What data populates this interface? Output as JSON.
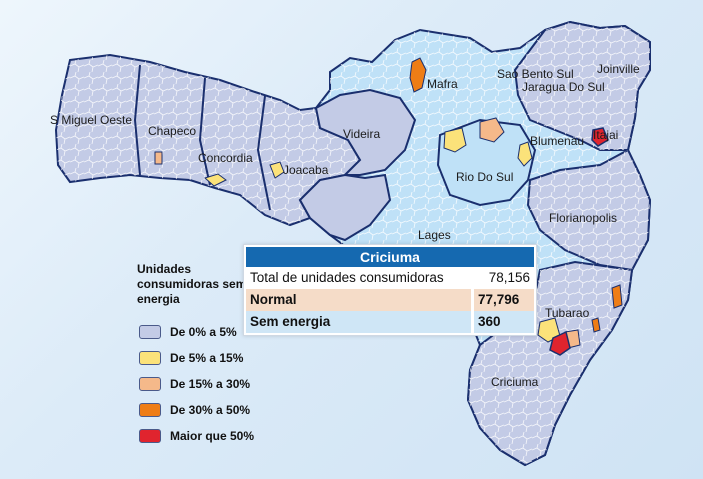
{
  "cities": [
    {
      "name": "S Miguel Oeste"
    },
    {
      "name": "Chapeco"
    },
    {
      "name": "Concordia"
    },
    {
      "name": "Joacaba"
    },
    {
      "name": "Videira"
    },
    {
      "name": "Mafra"
    },
    {
      "name": "Sao Bento Sul"
    },
    {
      "name": "Joinville"
    },
    {
      "name": "Jaragua Do Sul"
    },
    {
      "name": "Blumenau"
    },
    {
      "name": "Itajai"
    },
    {
      "name": "Rio Do Sul"
    },
    {
      "name": "Florianopolis"
    },
    {
      "name": "Lages"
    },
    {
      "name": "Tubarao"
    },
    {
      "name": "Criciuma"
    }
  ],
  "legend": {
    "title": "Unidades consumidoras sem energia",
    "items": [
      {
        "label": "De 0% a 5%",
        "color": "#c3cbe6"
      },
      {
        "label": "De 5% a 15%",
        "color": "#fbe27a"
      },
      {
        "label": "De 15% a 30%",
        "color": "#f5b98a"
      },
      {
        "label": "De 30% a 50%",
        "color": "#ee7d16"
      },
      {
        "label": "Maior que 50%",
        "color": "#e0242e"
      }
    ]
  },
  "popup": {
    "title": "Criciuma",
    "total_label": "Total de unidades consumidoras",
    "total_value": "78,156",
    "normal_label": "Normal",
    "normal_value": "77,796",
    "sem_label": "Sem energia",
    "sem_value": "360"
  }
}
